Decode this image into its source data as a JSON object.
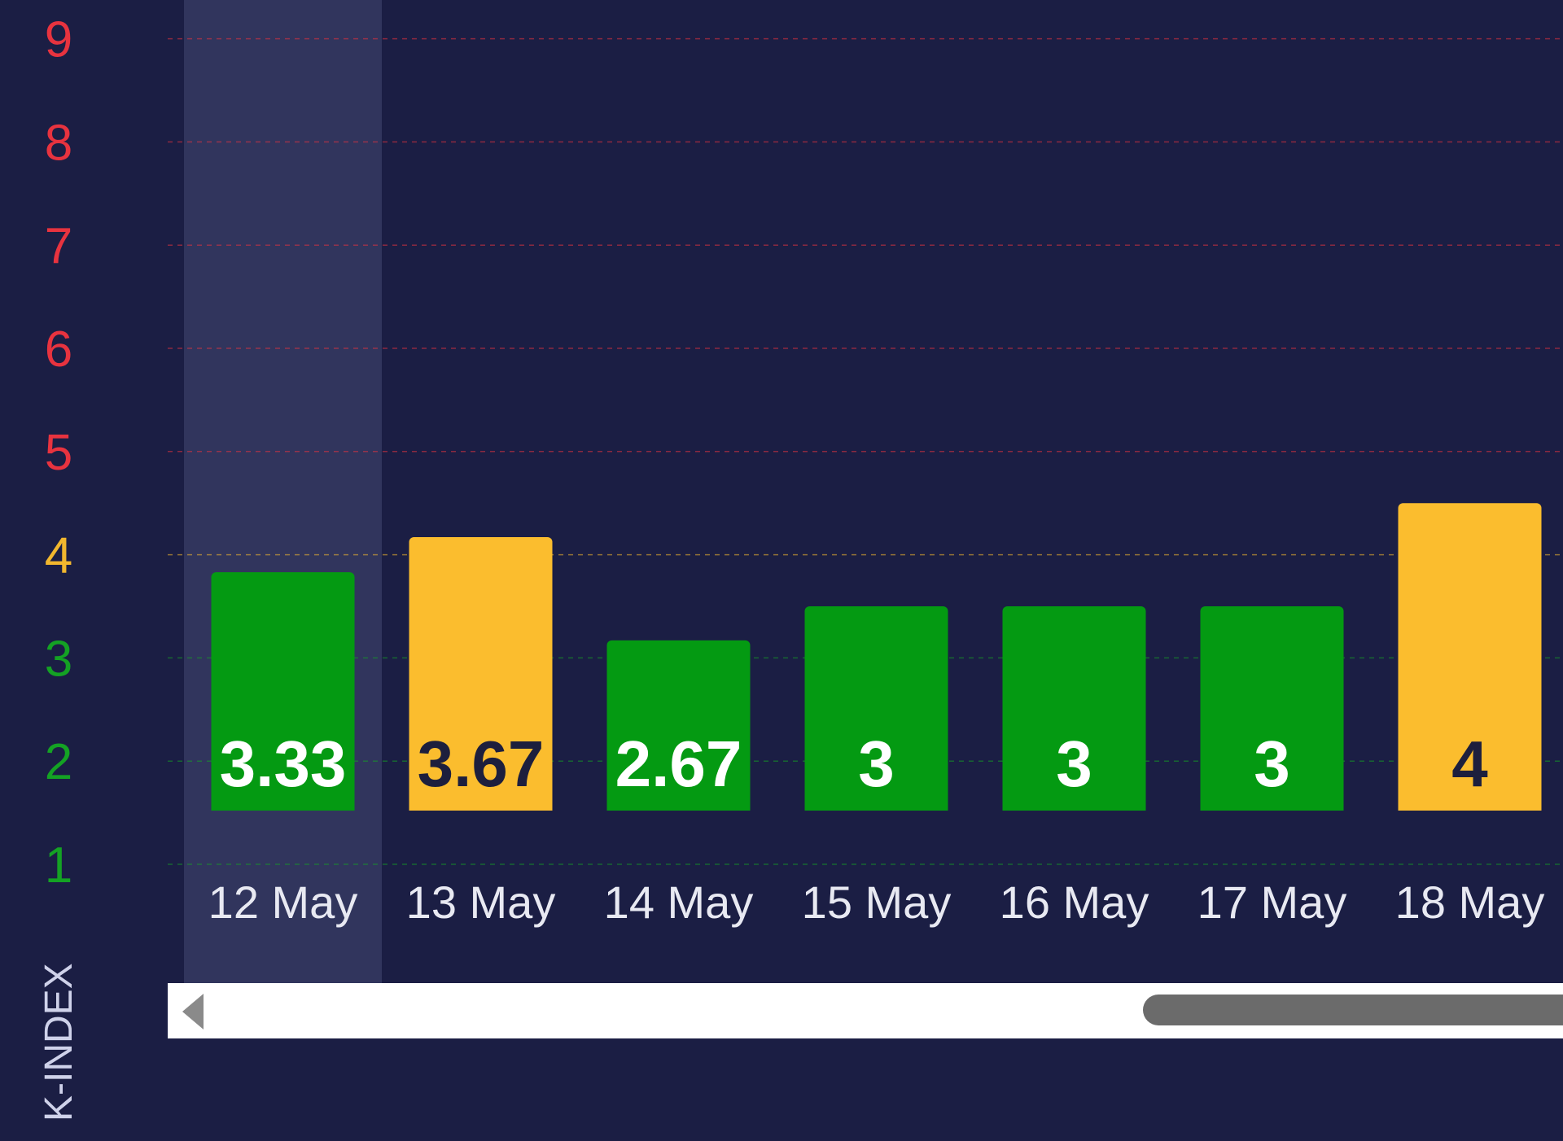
{
  "chart_data": {
    "type": "bar",
    "ylabel": "K-INDEX",
    "ylim": [
      0.5,
      9.3
    ],
    "yticks": [
      "1",
      "2",
      "3",
      "4",
      "5",
      "6",
      "7",
      "8",
      "9"
    ],
    "categories": [
      "12 May",
      "13 May",
      "14 May",
      "15 May",
      "16 May",
      "17 May",
      "18 May"
    ],
    "values": [
      3.33,
      3.67,
      2.67,
      3,
      3,
      3,
      4
    ],
    "value_labels": [
      "3.33",
      "3.67",
      "2.67",
      "3",
      "3",
      "3",
      "4"
    ],
    "highlighted_category": "12 May",
    "grid": true
  },
  "colors": {
    "background": "#1b1e44",
    "bar_quiet": "#049a12",
    "bar_unsettled": "#fbbd2e",
    "tick_quiet": "#14a224",
    "tick_unsettled": "#f2b72e",
    "tick_storm": "#e8333f",
    "label_on_green": "#ffffff",
    "label_on_yellow": "#1d1f3d",
    "highlight_band": "#3a3d66",
    "scrollbar_track": "#ffffff",
    "scrollbar_thumb": "#6b6b6b"
  },
  "scrollbar": {
    "left_arrow_icon": "triangle-left-icon"
  }
}
